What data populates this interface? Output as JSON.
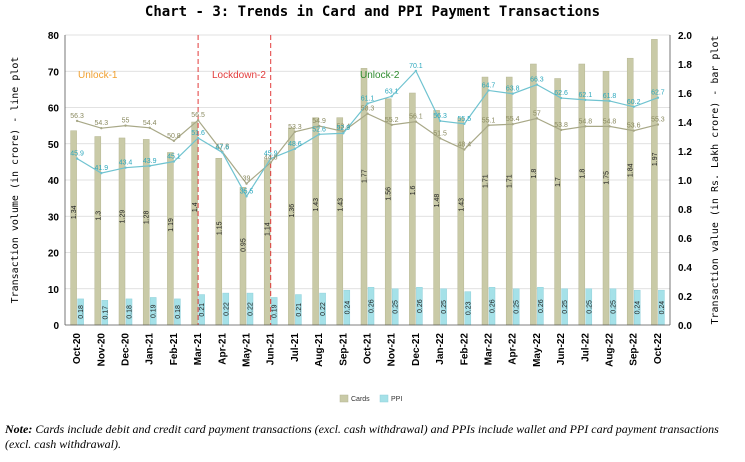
{
  "chart_data": {
    "type": "bar+line",
    "title": "Chart - 3: Trends in Card and PPI Payment Transactions",
    "categories": [
      "Oct-20",
      "Nov-20",
      "Dec-20",
      "Jan-21",
      "Feb-21",
      "Mar-21",
      "Apr-21",
      "May-21",
      "Jun-21",
      "Jul-21",
      "Aug-21",
      "Sep-21",
      "Oct-21",
      "Nov-21",
      "Dec-21",
      "Jan-22",
      "Feb-22",
      "Mar-22",
      "Apr-22",
      "May-22",
      "Jun-22",
      "Jul-22",
      "Aug-22",
      "Sep-22",
      "Oct-22"
    ],
    "ylabel_left": "Transaction volume (in crore) - line plot",
    "ylabel_right": "Transaction value (in Rs. Lakh crore) - bar plot",
    "ylim_left": [
      0,
      80
    ],
    "yticks_left": [
      0,
      10,
      20,
      30,
      40,
      50,
      60,
      70,
      80
    ],
    "ylim_right": [
      0,
      2.0
    ],
    "yticks_right": [
      "0.0",
      "0.2",
      "0.4",
      "0.6",
      "0.8",
      "1.0",
      "1.2",
      "1.4",
      "1.6",
      "1.8",
      "2.0"
    ],
    "bar_series": [
      {
        "name": "Cards",
        "color": "#c9caa7",
        "values": [
          1.34,
          1.3,
          1.29,
          1.28,
          1.19,
          1.4,
          1.15,
          0.95,
          1.14,
          1.36,
          1.43,
          1.43,
          1.77,
          1.56,
          1.6,
          1.48,
          1.43,
          1.71,
          1.71,
          1.8,
          1.7,
          1.8,
          1.75,
          1.84,
          1.97
        ]
      },
      {
        "name": "PPI",
        "color": "#a5e1e8",
        "values": [
          0.18,
          0.17,
          0.18,
          0.19,
          0.18,
          0.21,
          0.22,
          0.22,
          0.19,
          0.21,
          0.22,
          0.24,
          0.26,
          0.25,
          0.26,
          0.25,
          0.23,
          0.26,
          0.25,
          0.26,
          0.25,
          0.25,
          0.25,
          0.24,
          0.24
        ]
      }
    ],
    "line_series": [
      {
        "name": "Cards",
        "color": "#a8a887",
        "values": [
          56.3,
          54.3,
          55,
          54.4,
          50.8,
          56.5,
          47.8,
          39,
          44.8,
          53.3,
          54.9,
          53.4,
          58.3,
          55.2,
          56.1,
          51.5,
          48.4,
          55.1,
          55.4,
          57,
          53.8,
          54.8,
          54.8,
          53.6,
          55.3
        ]
      },
      {
        "name": "PPI",
        "color": "#6fc3d0",
        "values": [
          45.9,
          41.9,
          43.4,
          43.9,
          45.1,
          51.6,
          47.6,
          35.5,
          45.9,
          48.6,
          52.6,
          52.9,
          61.1,
          63.1,
          70.1,
          56.3,
          55.5,
          64.7,
          63.8,
          66.3,
          62.6,
          62.1,
          61.8,
          60.2,
          62.7
        ]
      }
    ],
    "legend": [
      "Cards",
      "PPI"
    ],
    "annotations": [
      {
        "label": "Unlock-1",
        "color": "#f0a030"
      },
      {
        "label": "Lockdown-2",
        "color": "#e23b3b"
      },
      {
        "label": "Unlock-2",
        "color": "#2e8b2e"
      }
    ]
  },
  "note": {
    "prefix": "Note:",
    "text": " Cards include debit and credit card payment transactions (excl. cash withdrawal) and PPIs include wallet and PPI card payment transactions (excl. cash withdrawal)."
  }
}
